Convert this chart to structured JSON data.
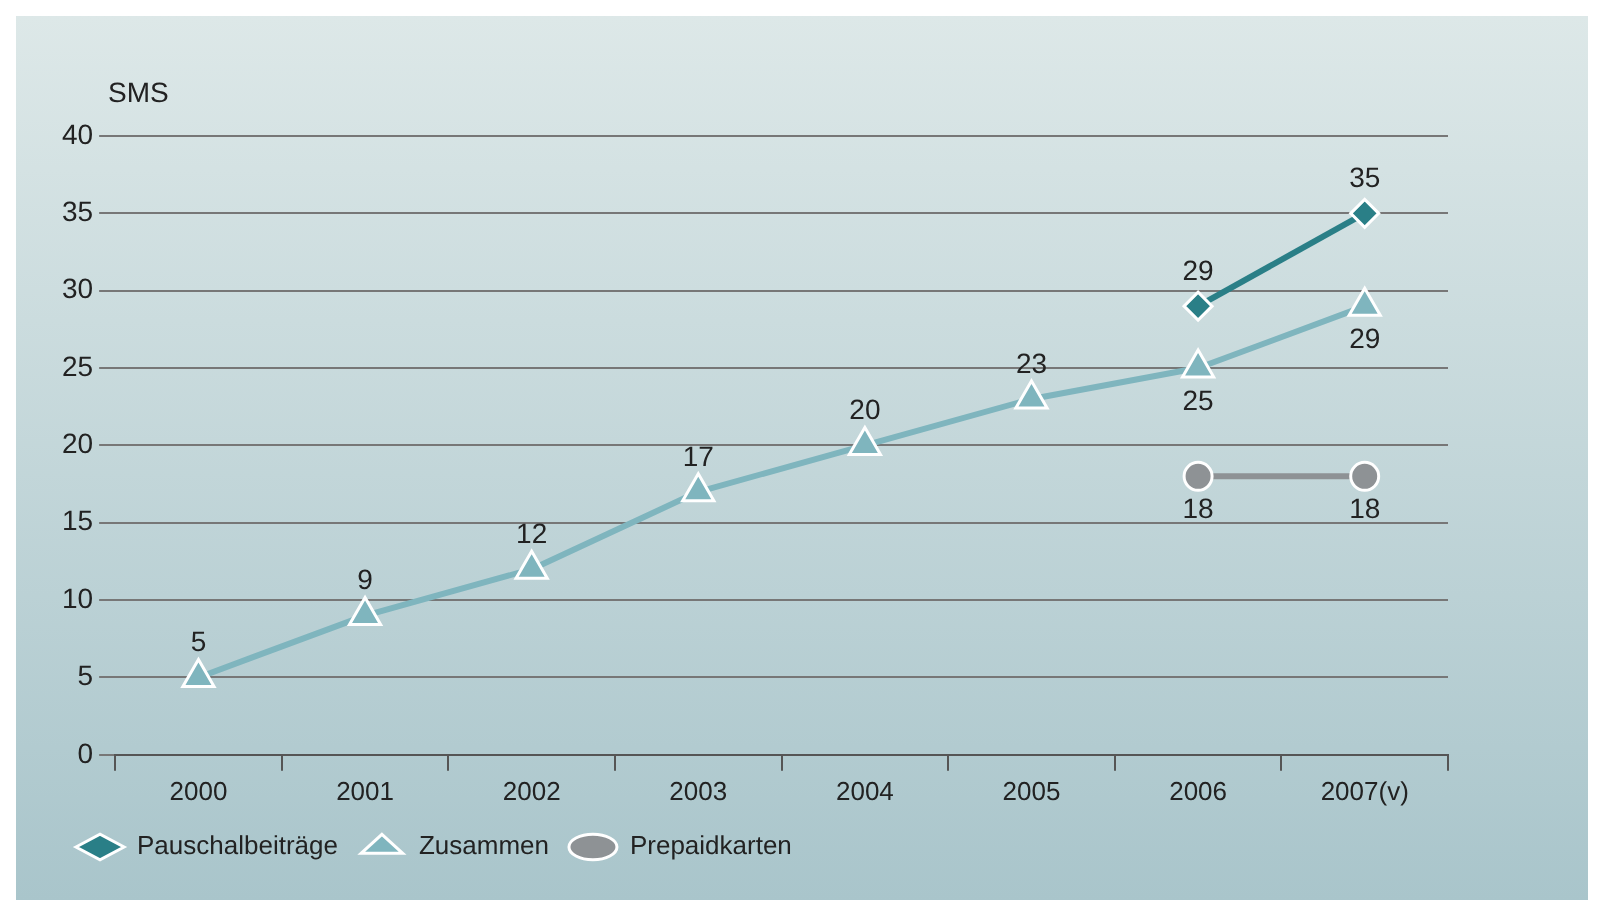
{
  "chart_data": {
    "type": "line",
    "ylabel": "SMS",
    "categories": [
      "2000",
      "2001",
      "2002",
      "2003",
      "2004",
      "2005",
      "2006",
      "2007(v)"
    ],
    "ylim": [
      0,
      40
    ],
    "yticks": [
      0,
      5,
      10,
      15,
      20,
      25,
      30,
      35,
      40
    ],
    "grid": "y",
    "legend": "bottom left",
    "data_labels": true,
    "series": [
      {
        "name": "Pauschalbeiträge",
        "color": "#2a7f87",
        "marker": "diamond",
        "values": [
          null,
          null,
          null,
          null,
          null,
          null,
          29,
          35
        ]
      },
      {
        "name": "Zusammen",
        "color": "#7fb5be",
        "marker": "triangle",
        "values": [
          5,
          9,
          12,
          17,
          20,
          23,
          25,
          29
        ]
      },
      {
        "name": "Prepaidkarten",
        "color": "#8e9295",
        "marker": "circle",
        "values": [
          null,
          null,
          null,
          null,
          null,
          null,
          18,
          18
        ]
      }
    ]
  }
}
